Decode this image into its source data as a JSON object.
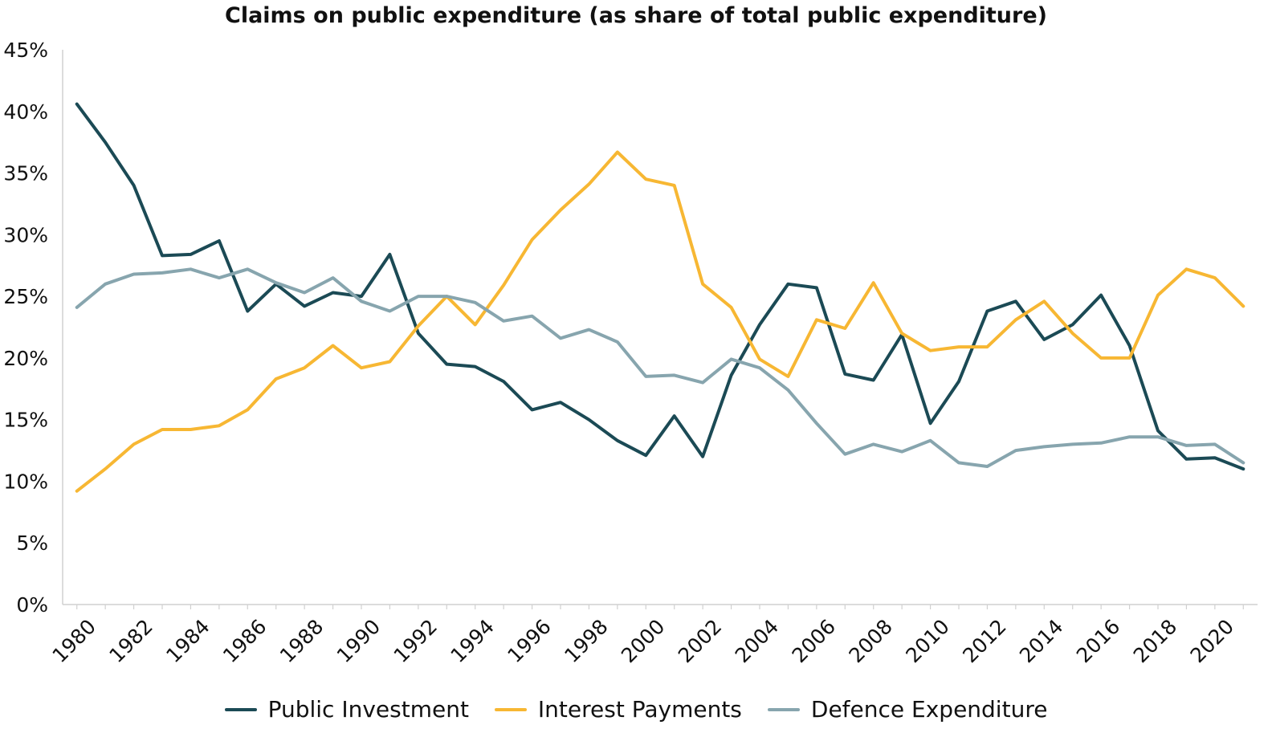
{
  "chart_data": {
    "type": "line",
    "title": "Claims on public expenditure (as share of total public expenditure)",
    "xlabel": "",
    "ylabel": "",
    "ylim": [
      0,
      45
    ],
    "yticks": [
      "0%",
      "5%",
      "10%",
      "15%",
      "20%",
      "25%",
      "30%",
      "35%",
      "40%",
      "45%"
    ],
    "xtick_labels": [
      "1980",
      "1982",
      "1984",
      "1986",
      "1988",
      "1990",
      "1992",
      "1994",
      "1996",
      "1998",
      "2000",
      "2002",
      "2004",
      "2006",
      "2008",
      "2010",
      "2012",
      "2014",
      "2016",
      "2018",
      "2020"
    ],
    "grid": false,
    "legend_position": "bottom",
    "x": [
      1980,
      1981,
      1982,
      1983,
      1984,
      1985,
      1986,
      1987,
      1988,
      1989,
      1990,
      1991,
      1992,
      1993,
      1994,
      1995,
      1996,
      1997,
      1998,
      1999,
      2000,
      2001,
      2002,
      2003,
      2004,
      2005,
      2006,
      2007,
      2008,
      2009,
      2010,
      2011,
      2012,
      2013,
      2014,
      2015,
      2016,
      2017,
      2018,
      2019,
      2020,
      2021
    ],
    "series": [
      {
        "name": "Public Investment",
        "color": "#1b4a55",
        "values": [
          40.6,
          37.5,
          34.0,
          28.3,
          28.4,
          29.5,
          23.8,
          26.0,
          24.2,
          25.3,
          25.0,
          28.4,
          22.0,
          19.5,
          19.3,
          18.1,
          15.8,
          16.4,
          15.0,
          13.3,
          12.1,
          15.3,
          12.0,
          18.6,
          22.7,
          26.0,
          25.7,
          18.7,
          18.2,
          21.9,
          14.7,
          18.1,
          23.8,
          24.6,
          21.5,
          22.7,
          25.1,
          21.0,
          14.1,
          11.8,
          11.9,
          11.0
        ]
      },
      {
        "name": "Interest Payments",
        "color": "#f7b733",
        "values": [
          9.2,
          11.0,
          13.0,
          14.2,
          14.2,
          14.5,
          15.8,
          18.3,
          19.2,
          21.0,
          19.2,
          19.7,
          22.6,
          25.0,
          22.7,
          25.9,
          29.6,
          32.0,
          34.1,
          36.7,
          34.5,
          34.0,
          26.0,
          24.1,
          19.9,
          18.5,
          23.1,
          22.4,
          26.1,
          22.0,
          20.6,
          20.9,
          20.9,
          23.1,
          24.6,
          22.0,
          20.0,
          20.0,
          25.1,
          27.2,
          26.5,
          24.2
        ]
      },
      {
        "name": "Defence Expenditure",
        "color": "#87a5ae",
        "values": [
          24.1,
          26.0,
          26.8,
          26.9,
          27.2,
          26.5,
          27.2,
          26.1,
          25.3,
          26.5,
          24.6,
          23.8,
          25.0,
          25.0,
          24.5,
          23.0,
          23.4,
          21.6,
          22.3,
          21.3,
          18.5,
          18.6,
          18.0,
          19.9,
          19.2,
          17.4,
          14.7,
          12.2,
          13.0,
          12.4,
          13.3,
          11.5,
          11.2,
          12.5,
          12.8,
          13.0,
          13.1,
          13.6,
          13.6,
          12.9,
          13.0,
          11.5
        ]
      }
    ]
  }
}
